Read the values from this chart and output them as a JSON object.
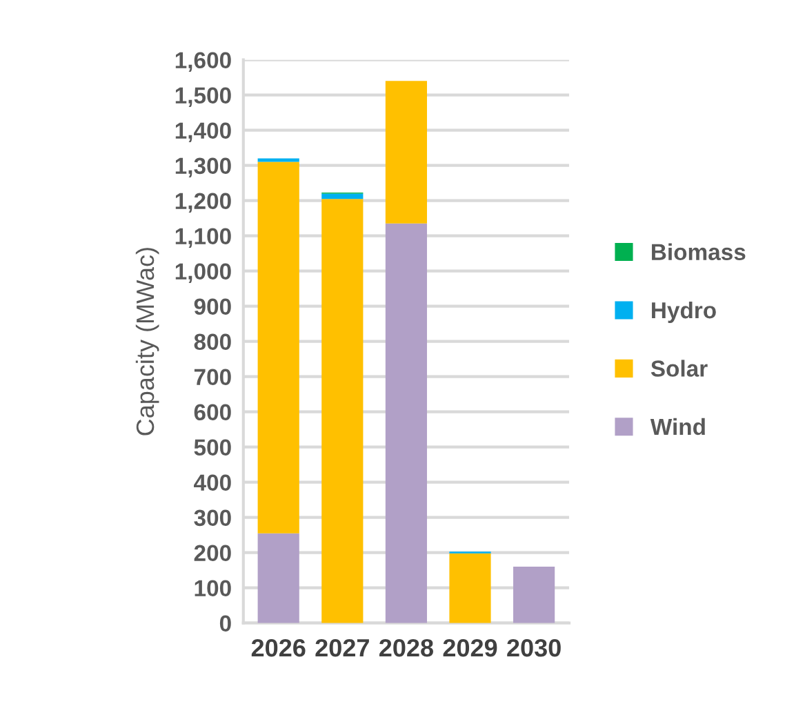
{
  "chart_data": {
    "type": "bar",
    "stacked": true,
    "ylabel": "Capacity (MWac)",
    "categories": [
      "2026",
      "2027",
      "2028",
      "2029",
      "2030"
    ],
    "series": [
      {
        "name": "Wind",
        "color": "#b1a0c7",
        "values": [
          255,
          null,
          1135,
          null,
          160
        ]
      },
      {
        "name": "Solar",
        "color": "#ffc000",
        "values": [
          1055,
          1205,
          405,
          198,
          null
        ]
      },
      {
        "name": "Hydro",
        "color": "#00b0f0",
        "values": [
          10,
          15,
          null,
          5,
          null
        ]
      },
      {
        "name": "Biomass",
        "color": "#00b050",
        "values": [
          null,
          3,
          null,
          null,
          null
        ]
      }
    ],
    "ylim": [
      0,
      1600
    ],
    "yticks": [
      {
        "value": 0,
        "label": "0"
      },
      {
        "value": 100,
        "label": "100"
      },
      {
        "value": 200,
        "label": "200"
      },
      {
        "value": 300,
        "label": "300"
      },
      {
        "value": 400,
        "label": "400"
      },
      {
        "value": 500,
        "label": "500"
      },
      {
        "value": 600,
        "label": "600"
      },
      {
        "value": 700,
        "label": "700"
      },
      {
        "value": 800,
        "label": "800"
      },
      {
        "value": 900,
        "label": "900"
      },
      {
        "value": 1000,
        "label": "1,000"
      },
      {
        "value": 1100,
        "label": "1,100"
      },
      {
        "value": 1200,
        "label": "1,200"
      },
      {
        "value": 1300,
        "label": "1,300"
      },
      {
        "value": 1400,
        "label": "1,400"
      },
      {
        "value": 1500,
        "label": "1,500"
      },
      {
        "value": 1600,
        "label": "1,600"
      }
    ],
    "grid": "y",
    "legend": "right"
  }
}
